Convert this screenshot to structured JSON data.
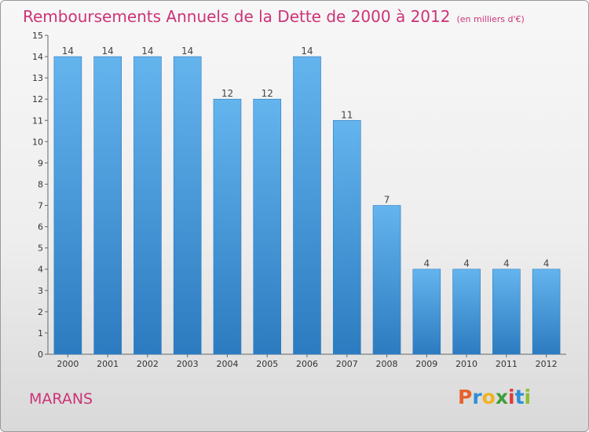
{
  "header": {
    "title": "Remboursements Annuels de la Dette de 2000 à 2012",
    "subtitle": "(en milliers d'€)"
  },
  "footer": {
    "commune": "MARANS",
    "logo_text": "Proxiti",
    "logo_colors": [
      "#e8622b",
      "#2d8fd4",
      "#f0b221",
      "#3f9e3a",
      "#e23b3b",
      "#2d8fd4",
      "#8bbf2e"
    ]
  },
  "colors": {
    "bar": "#4d9fdf",
    "bar_light": "#64b4ee",
    "bar_dark": "#2c7bc0",
    "title": "#cc3377"
  },
  "chart_data": {
    "type": "bar",
    "title": "Remboursements Annuels de la Dette de 2000 à 2012",
    "categories": [
      "2000",
      "2001",
      "2002",
      "2003",
      "2004",
      "2005",
      "2006",
      "2007",
      "2008",
      "2009",
      "2010",
      "2011",
      "2012"
    ],
    "values": [
      14,
      14,
      14,
      14,
      12,
      12,
      14,
      11,
      7,
      4,
      4,
      4,
      4
    ],
    "data_labels": [
      "14",
      "14",
      "14",
      "14",
      "12",
      "12",
      "14",
      "11",
      "7",
      "4",
      "4",
      "4",
      "4"
    ],
    "y_ticks": [
      "0",
      "1",
      "2",
      "3",
      "4",
      "5",
      "6",
      "7",
      "8",
      "9",
      "10",
      "11",
      "12",
      "13",
      "14",
      "15"
    ],
    "ylim": [
      0,
      15
    ],
    "grid": false
  }
}
